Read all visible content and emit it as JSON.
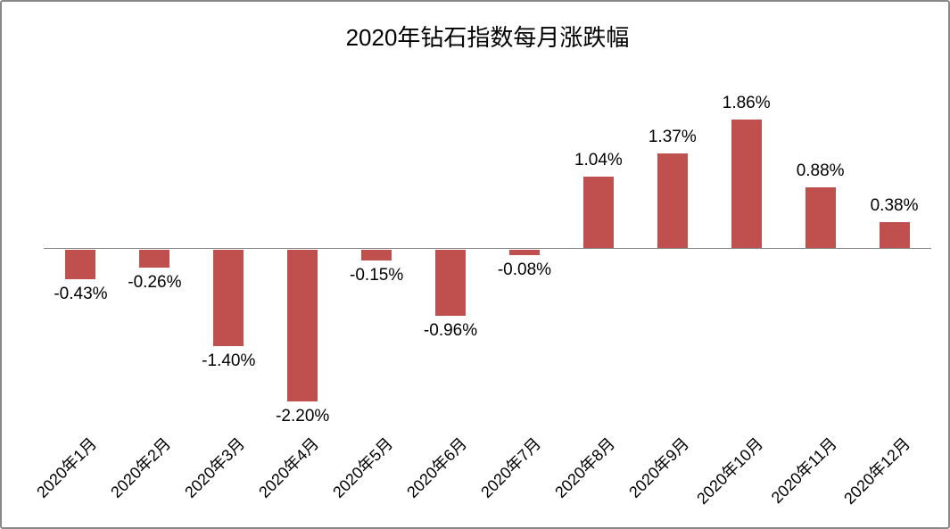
{
  "frame": {
    "background": "#ffffff",
    "border_color": "#898989"
  },
  "chart_data": {
    "type": "bar",
    "title": "2020年钻石指数每月涨跌幅",
    "categories": [
      "2020年1月",
      "2020年2月",
      "2020年3月",
      "2020年4月",
      "2020年5月",
      "2020年6月",
      "2020年7月",
      "2020年8月",
      "2020年9月",
      "2020年10月",
      "2020年11月",
      "2020年12月"
    ],
    "values": [
      -0.43,
      -0.26,
      -1.4,
      -2.2,
      -0.15,
      -0.96,
      -0.08,
      1.04,
      1.37,
      1.86,
      0.88,
      0.38
    ],
    "data_labels": [
      "-0.43%",
      "-0.26%",
      "-1.40%",
      "-2.20%",
      "-0.15%",
      "-0.96%",
      "-0.08%",
      "1.04%",
      "1.37%",
      "1.86%",
      "0.88%",
      "0.38%"
    ],
    "xlabel": "",
    "ylabel": "",
    "ylim": [
      -2.5,
      2.0
    ],
    "grid": false,
    "legend": false,
    "x_tick_rotation_deg": 45,
    "bar_color": "#c0504d",
    "axis_line_color": "#8a8a8a",
    "text_color": "#000000"
  }
}
